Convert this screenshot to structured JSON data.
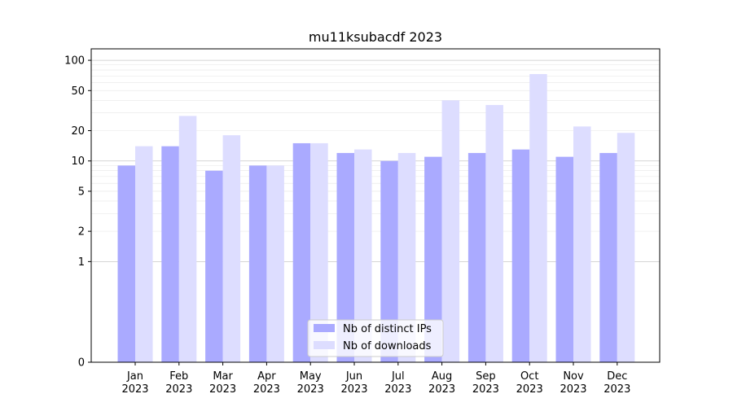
{
  "chart_data": {
    "type": "bar",
    "title": "mu11ksubacdf 2023",
    "xlabel": "",
    "ylabel": "",
    "categories": [
      [
        "Jan",
        "2023"
      ],
      [
        "Feb",
        "2023"
      ],
      [
        "Mar",
        "2023"
      ],
      [
        "Apr",
        "2023"
      ],
      [
        "May",
        "2023"
      ],
      [
        "Jun",
        "2023"
      ],
      [
        "Jul",
        "2023"
      ],
      [
        "Aug",
        "2023"
      ],
      [
        "Sep",
        "2023"
      ],
      [
        "Oct",
        "2023"
      ],
      [
        "Nov",
        "2023"
      ],
      [
        "Dec",
        "2023"
      ]
    ],
    "series": [
      {
        "name": "Nb of distinct IPs",
        "color": "#aaaaff",
        "values": [
          9,
          14,
          8,
          9,
          15,
          12,
          10,
          11,
          12,
          13,
          11,
          12
        ]
      },
      {
        "name": "Nb of downloads",
        "color": "#ddddff",
        "values": [
          14,
          28,
          18,
          9,
          15,
          13,
          12,
          40,
          36,
          73,
          22,
          19
        ]
      }
    ],
    "y_scale": "symlog",
    "ylim": [
      0,
      130
    ],
    "y_ticks": [
      0,
      1,
      2,
      5,
      10,
      20,
      50,
      100
    ],
    "grid": true,
    "legend_position": "bottom-center"
  }
}
